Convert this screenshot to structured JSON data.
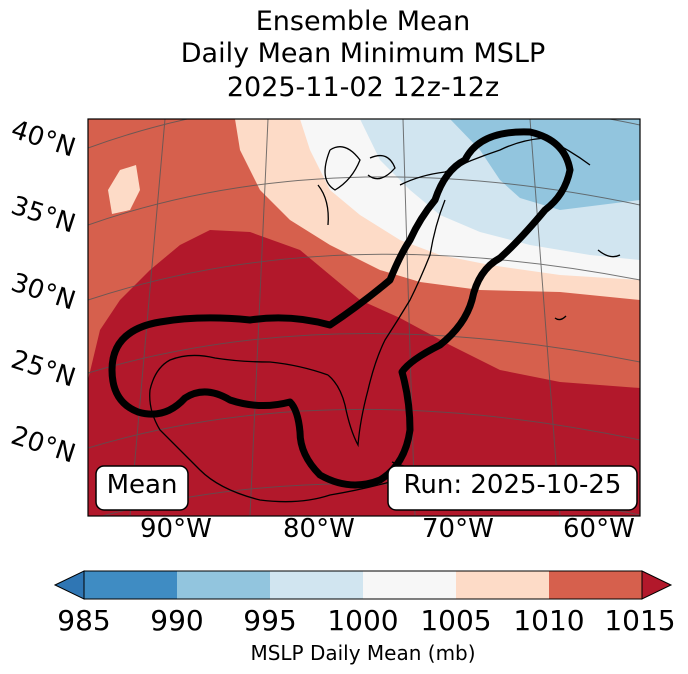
{
  "title": {
    "line1": "Ensemble Mean",
    "line2": "Daily Mean Minimum MSLP",
    "line3": "2025-11-02 12z-12z"
  },
  "map": {
    "lat_labels": [
      "40°N",
      "35°N",
      "30°N",
      "25°N",
      "20°N"
    ],
    "lon_labels": [
      "90°W",
      "80°W",
      "70°W",
      "60°W"
    ],
    "mean_box": "Mean",
    "run_box": "Run: 2025-10-25",
    "contour_color": "#000000"
  },
  "colorbar": {
    "ticks": [
      "985",
      "990",
      "995",
      "1000",
      "1005",
      "1010",
      "1015"
    ],
    "label": "MSLP Daily Mean (mb)",
    "colors": [
      "#2f76b4",
      "#3f8cc3",
      "#92c5de",
      "#d1e5f0",
      "#f7f7f7",
      "#fddbc7",
      "#d6604d",
      "#b2182b"
    ]
  }
}
